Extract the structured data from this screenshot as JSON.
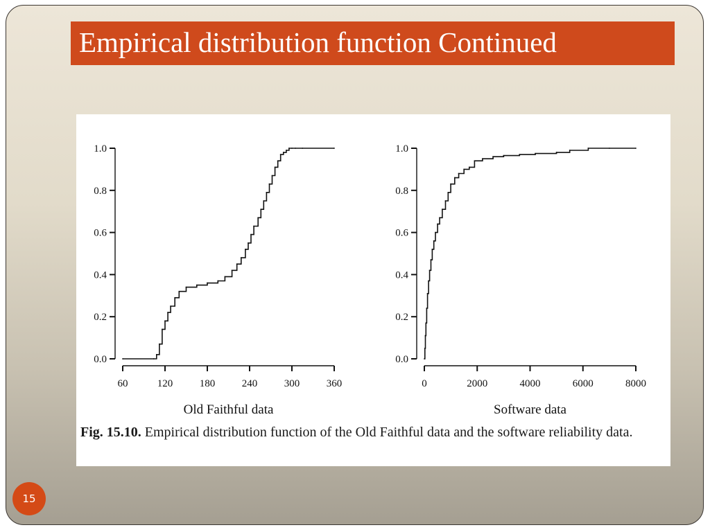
{
  "slide": {
    "title": "Empirical distribution function Continued",
    "page_number": "15",
    "accent_color": "#cf4a1c"
  },
  "figure": {
    "caption_label": "Fig. 15.10.",
    "caption_text": " Empirical distribution function of the Old Faithful data and the software reliability data."
  },
  "chart_data": [
    {
      "type": "line",
      "step": true,
      "xlabel": "Old Faithful data",
      "xlim": [
        60,
        360
      ],
      "ylim": [
        0,
        1
      ],
      "xticks": [
        60,
        120,
        180,
        240,
        300,
        360
      ],
      "yticks": [
        0.0,
        0.2,
        0.4,
        0.6,
        0.8,
        1.0
      ],
      "ytick_labels": [
        "0.0",
        "0.2",
        "0.4",
        "0.6",
        "0.8",
        "1.0"
      ],
      "grid": false,
      "x": [
        60,
        104,
        108,
        112,
        116,
        120,
        124,
        128,
        134,
        140,
        150,
        165,
        180,
        195,
        205,
        215,
        222,
        228,
        234,
        238,
        242,
        246,
        252,
        256,
        260,
        264,
        268,
        272,
        276,
        280,
        284,
        288,
        292,
        296,
        300,
        305,
        315,
        360
      ],
      "y": [
        0.0,
        0.0,
        0.02,
        0.07,
        0.14,
        0.18,
        0.22,
        0.25,
        0.29,
        0.32,
        0.34,
        0.35,
        0.36,
        0.37,
        0.39,
        0.42,
        0.45,
        0.48,
        0.52,
        0.55,
        0.59,
        0.63,
        0.67,
        0.71,
        0.75,
        0.79,
        0.83,
        0.87,
        0.91,
        0.94,
        0.97,
        0.98,
        0.99,
        1.0,
        1.0,
        1.0,
        1.0,
        1.0
      ]
    },
    {
      "type": "line",
      "step": true,
      "xlabel": "Software data",
      "xlim": [
        0,
        8000
      ],
      "ylim": [
        0,
        1
      ],
      "xticks": [
        0,
        2000,
        4000,
        6000,
        8000
      ],
      "yticks": [
        0.0,
        0.2,
        0.4,
        0.6,
        0.8,
        1.0
      ],
      "ytick_labels": [
        "0.0",
        "0.2",
        "0.4",
        "0.6",
        "0.8",
        "1.0"
      ],
      "grid": false,
      "x": [
        0,
        20,
        40,
        60,
        90,
        120,
        160,
        200,
        250,
        300,
        360,
        420,
        500,
        580,
        680,
        800,
        900,
        1000,
        1150,
        1300,
        1500,
        1700,
        1900,
        2200,
        2600,
        3000,
        3600,
        4200,
        5000,
        5500,
        6200,
        7000,
        8000
      ],
      "y": [
        0.0,
        0.05,
        0.11,
        0.17,
        0.24,
        0.31,
        0.37,
        0.42,
        0.47,
        0.52,
        0.56,
        0.6,
        0.64,
        0.67,
        0.71,
        0.75,
        0.79,
        0.83,
        0.86,
        0.88,
        0.9,
        0.91,
        0.94,
        0.95,
        0.96,
        0.965,
        0.97,
        0.975,
        0.98,
        0.99,
        1.0,
        1.0,
        1.0
      ]
    }
  ]
}
